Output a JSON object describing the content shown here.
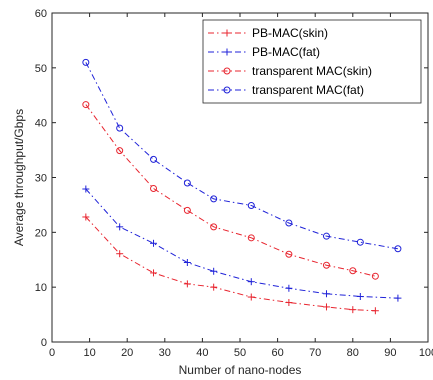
{
  "chart_data": {
    "type": "line",
    "title": "",
    "xlabel": "Number of nano-nodes",
    "ylabel": "Average throughput/Gbps",
    "xlim": [
      0,
      100
    ],
    "ylim": [
      0,
      60
    ],
    "xticks": [
      0,
      10,
      20,
      30,
      40,
      50,
      60,
      70,
      80,
      90,
      100
    ],
    "yticks": [
      0,
      10,
      20,
      30,
      40,
      50,
      60
    ],
    "grid": false,
    "legend_position": "top-right",
    "series": [
      {
        "name": "PB-MAC(skin)",
        "color": "#e8252f",
        "marker": "plus",
        "line_style": "dash-dot",
        "x": [
          9,
          18,
          27,
          36,
          43,
          53,
          63,
          73,
          80,
          86
        ],
        "y": [
          22.8,
          16.1,
          12.6,
          10.6,
          10.0,
          8.2,
          7.2,
          6.4,
          5.9,
          5.7
        ]
      },
      {
        "name": "PB-MAC(fat)",
        "color": "#1f22d8",
        "marker": "plus",
        "line_style": "dash-dot",
        "x": [
          9,
          18,
          27,
          36,
          43,
          53,
          63,
          73,
          82,
          92
        ],
        "y": [
          27.9,
          21.0,
          18.0,
          14.5,
          12.9,
          11.0,
          9.8,
          8.8,
          8.3,
          8.0
        ]
      },
      {
        "name": "transparent MAC(skin)",
        "color": "#e8252f",
        "marker": "circle",
        "line_style": "dash-dot",
        "x": [
          9,
          18,
          27,
          36,
          43,
          53,
          63,
          73,
          80,
          86
        ],
        "y": [
          43.3,
          34.9,
          28.0,
          24.0,
          21.0,
          19.0,
          16.0,
          14.0,
          13.0,
          12.0
        ]
      },
      {
        "name": "transparent MAC(fat)",
        "color": "#1f22d8",
        "marker": "circle",
        "line_style": "dash-dot",
        "x": [
          9,
          18,
          27,
          36,
          43,
          53,
          63,
          73,
          82,
          92
        ],
        "y": [
          51.0,
          39.0,
          33.3,
          29.0,
          26.1,
          24.9,
          21.7,
          19.3,
          18.2,
          17.0
        ]
      }
    ]
  }
}
